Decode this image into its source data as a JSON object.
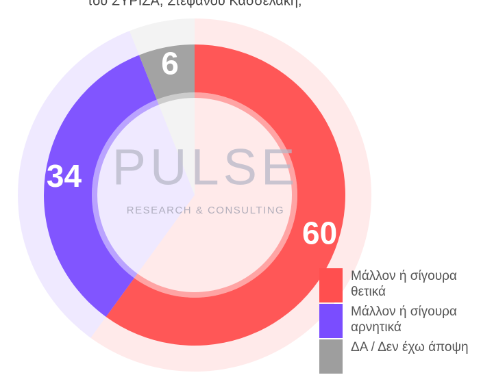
{
  "chart_data": {
    "type": "donut",
    "title": "του ΣΥΡΙΖΑ, Στέφανου Κασσελάκη;",
    "watermark": {
      "brand": "PULSE",
      "tagline": "RESEARCH & CONSULTING"
    },
    "categories": [
      "Μάλλον ή σίγουρα θετικά",
      "Μάλλον ή σίγουρα αρνητικά",
      "ΔΑ / Δεν έχω άποψη"
    ],
    "values": [
      60,
      34,
      6
    ],
    "colors": [
      "#ff4f4f",
      "#7a4dff",
      "#9e9e9e"
    ],
    "legend": "bottom-right"
  }
}
